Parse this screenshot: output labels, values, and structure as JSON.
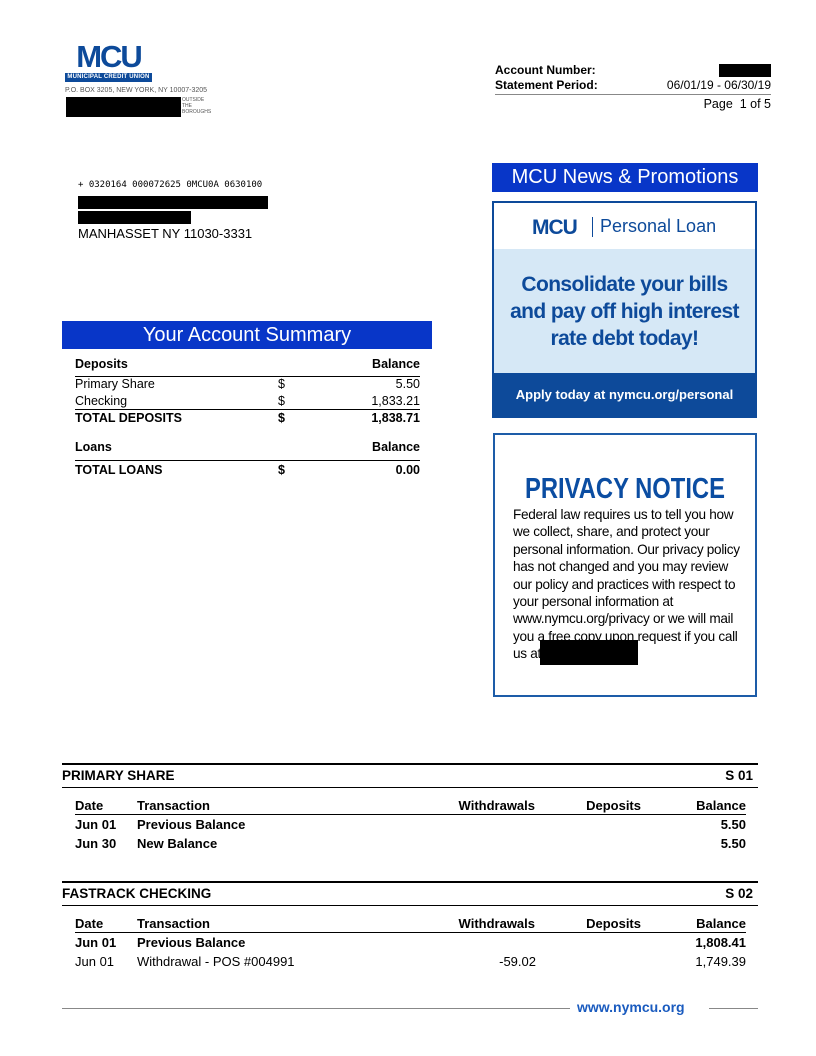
{
  "header": {
    "logo_text": "MCU",
    "logo_subtext": "MUNICIPAL CREDIT UNION",
    "address": "P.O. BOX 3205, NEW YORK, NY 10007-3205",
    "address_note": "OUTSIDE THE BOROUGHS",
    "account_number_label": "Account Number:",
    "statement_period_label": "Statement Period:",
    "statement_period": "06/01/19 - 06/30/19",
    "page": "Page  1 of 5"
  },
  "mailing": {
    "micr_line": "+ 0320164 000072625 0MCU0A 0630100",
    "city_line": "MANHASSET NY 11030-3331"
  },
  "promo": {
    "banner": "MCU News & Promotions",
    "ad_logo": "MCU",
    "ad_product": "Personal Loan",
    "ad_headline": "Consolidate your bills and pay off high interest rate debt today!",
    "ad_cta": "Apply today at nymcu.org/personal",
    "brand_color": "#0d4a9a"
  },
  "privacy": {
    "title": "PRIVACY NOTICE",
    "body": "Federal law requires us to tell you how we collect, share, and protect your personal information. Our privacy policy has not changed and you may review our policy and practices with respect to your personal information at www.nymcu.org/privacy or we will mail you a free copy upon request if you call us at"
  },
  "summary": {
    "title": "Your Account Summary",
    "deposits_header": "Deposits",
    "balance_header": "Balance",
    "deposits": [
      {
        "name": "Primary Share",
        "currency": "$",
        "balance": "5.50"
      },
      {
        "name": "Checking",
        "currency": "$",
        "balance": "1,833.21"
      }
    ],
    "total_deposits": {
      "name": "TOTAL DEPOSITS",
      "currency": "$",
      "balance": "1,838.71"
    },
    "loans_header": "Loans",
    "total_loans": {
      "name": "TOTAL LOANS",
      "currency": "$",
      "balance": "0.00"
    }
  },
  "columns": {
    "date": "Date",
    "transaction": "Transaction",
    "withdrawals": "Withdrawals",
    "deposits": "Deposits",
    "balance": "Balance"
  },
  "accounts": [
    {
      "name": "PRIMARY SHARE",
      "id": "S 01",
      "rows": [
        {
          "date": "Jun 01",
          "transaction": "Previous Balance",
          "withdrawal": "",
          "deposit": "",
          "balance": "5.50",
          "bold": true
        },
        {
          "date": "Jun 30",
          "transaction": "New Balance",
          "withdrawal": "",
          "deposit": "",
          "balance": "5.50",
          "bold": true
        }
      ]
    },
    {
      "name": "FASTRACK CHECKING",
      "id": "S 02",
      "rows": [
        {
          "date": "Jun 01",
          "transaction": "Previous Balance",
          "withdrawal": "",
          "deposit": "",
          "balance": "1,808.41",
          "bold": true
        },
        {
          "date": "Jun 01",
          "transaction": "Withdrawal - POS #004991",
          "withdrawal": "-59.02",
          "deposit": "",
          "balance": "1,749.39",
          "bold": false
        }
      ]
    }
  ],
  "footer": {
    "url": "www.nymcu.org"
  }
}
